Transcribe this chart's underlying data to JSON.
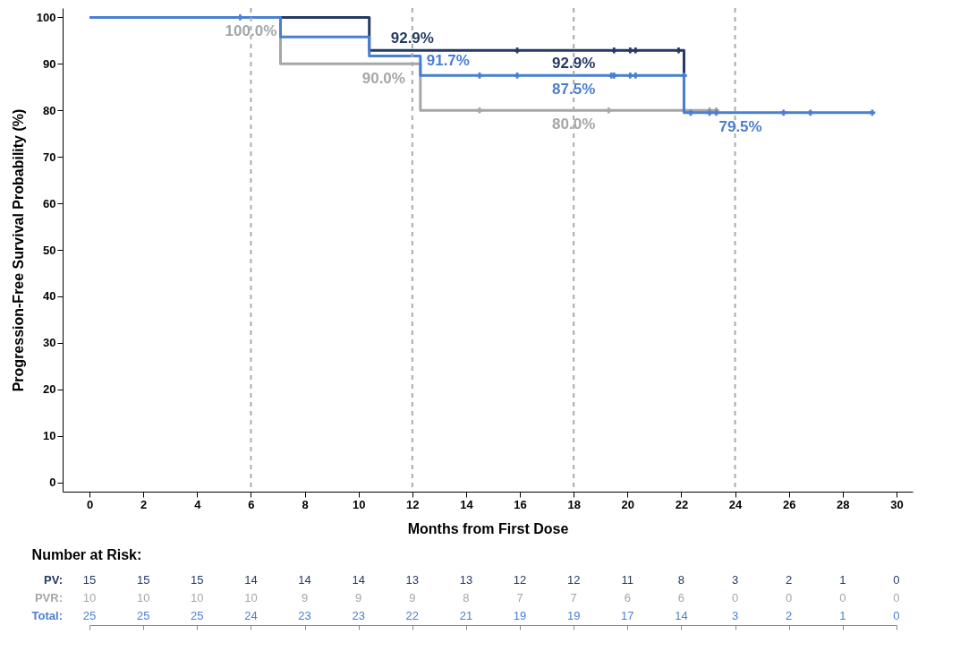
{
  "chart_data": [
    {
      "type": "step",
      "xlabel": "Months from First Dose",
      "ylabel": "Progression-Free Survival Probability (%)",
      "xlim": [
        -1,
        30.6
      ],
      "ylim": [
        -2,
        102
      ],
      "xticks": [
        0,
        2,
        4,
        6,
        8,
        10,
        12,
        14,
        16,
        18,
        20,
        22,
        24,
        26,
        28,
        30
      ],
      "yticks": [
        0,
        10,
        20,
        30,
        40,
        50,
        60,
        70,
        80,
        90,
        100
      ],
      "grid": false,
      "marker": "none",
      "line_style": "solid",
      "series": [
        {
          "type": "step",
          "color": "#a6a6a6",
          "x": [
            0,
            7.1,
            12.3,
            23.3
          ],
          "values": [
            100,
            90,
            80,
            80
          ]
        },
        {
          "type": "step",
          "color": "#243a64",
          "x": [
            0,
            10.4,
            22.1
          ],
          "values": [
            100,
            92.9,
            79.6
          ]
        },
        {
          "type": "step",
          "color": "#4a7fd0",
          "x": [
            0,
            7.1,
            10.4,
            12.3,
            22.1,
            29.1
          ],
          "values": [
            100,
            95.8,
            91.7,
            87.5,
            79.5,
            79.5
          ]
        },
        {
          "type": "scatter",
          "marker": "cross",
          "color": "#a6a6a6",
          "x": [
            14.5,
            19.3,
            23.05,
            23.3
          ],
          "values": [
            80,
            80,
            80,
            80
          ]
        },
        {
          "type": "scatter",
          "marker": "cross",
          "color": "#243a64",
          "x": [
            15.9,
            19.5,
            20.1,
            20.3,
            21.9
          ],
          "values": [
            92.9,
            92.9,
            92.9,
            92.9,
            92.9
          ]
        },
        {
          "type": "scatter",
          "marker": "cross",
          "color": "#4a7fd0",
          "x": [
            5.6,
            14.5,
            15.9,
            19.4,
            19.5,
            20.1,
            20.3,
            22.1,
            22.35,
            23.05,
            23.3,
            25.8,
            26.8,
            29.1
          ],
          "values": [
            100,
            87.5,
            87.5,
            87.5,
            87.5,
            87.5,
            87.5,
            87.5,
            79.5,
            79.5,
            79.5,
            79.5,
            79.5,
            79.5
          ]
        }
      ],
      "ref_lines": [
        {
          "axis": "x",
          "value": 6,
          "color": "#aaaaaa",
          "line_style": "dashed"
        },
        {
          "axis": "x",
          "value": 12,
          "color": "#aaaaaa",
          "line_style": "dashed"
        },
        {
          "axis": "x",
          "value": 18,
          "color": "#aaaaaa",
          "line_style": "dashed"
        },
        {
          "axis": "x",
          "value": 24,
          "color": "#aaaaaa",
          "line_style": "dashed"
        }
      ],
      "annotations": [
        {
          "text": "100.0%",
          "x": 6,
          "y": 100
        },
        {
          "text": "92.9%",
          "x": 12,
          "y": 92.9
        },
        {
          "text": "91.7%",
          "x": 12,
          "y": 91.7
        },
        {
          "text": "90.0%",
          "x": 12,
          "y": 90
        },
        {
          "text": "92.9%",
          "x": 18,
          "y": 92.9
        },
        {
          "text": "87.5%",
          "x": 18,
          "y": 87.5
        },
        {
          "text": "80.0%",
          "x": 18,
          "y": 80
        },
        {
          "text": "79.5%",
          "x": 24,
          "y": 79.5
        }
      ]
    },
    {
      "type": "heatmap",
      "title": "Number at Risk:",
      "data_labels": true,
      "tick_labels": "y",
      "x": [
        0,
        2,
        4,
        6,
        8,
        10,
        12,
        14,
        16,
        18,
        20,
        22,
        24,
        26,
        28,
        30
      ],
      "xlim": [
        0,
        30
      ],
      "xticks": [
        0,
        2,
        4,
        6,
        8,
        10,
        12,
        14,
        16,
        18,
        20,
        22,
        24,
        26,
        28,
        30
      ],
      "grid": false,
      "y_categories": [
        "PV:",
        "PVR:",
        "Total:"
      ],
      "colors": [
        "#243a64",
        "#a6a6a6",
        "#4a7fd0"
      ],
      "cells": [
        [
          15,
          15,
          15,
          14,
          14,
          14,
          13,
          13,
          12,
          12,
          11,
          8,
          3,
          2,
          1,
          0
        ],
        [
          10,
          10,
          10,
          10,
          9,
          9,
          9,
          8,
          7,
          7,
          6,
          6,
          0,
          0,
          0,
          0
        ],
        [
          25,
          25,
          25,
          24,
          23,
          23,
          22,
          21,
          19,
          19,
          17,
          14,
          3,
          2,
          1,
          0
        ]
      ]
    }
  ]
}
